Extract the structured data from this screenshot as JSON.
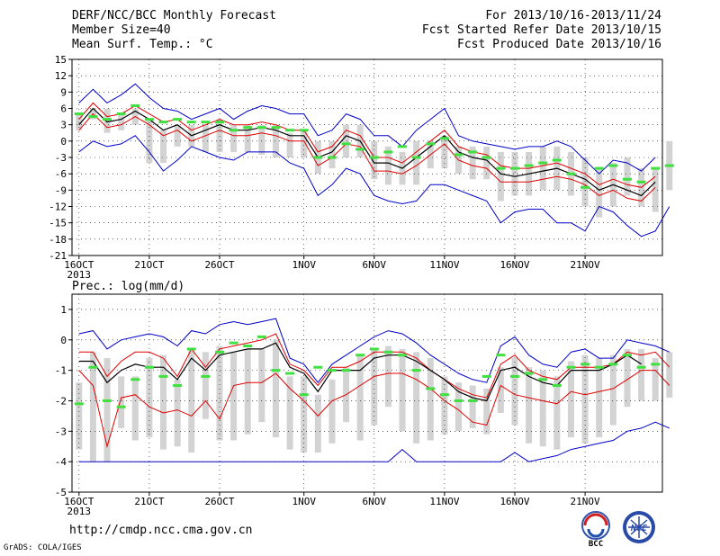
{
  "header": {
    "left": [
      "DERF/NCC/BCC Monthly Forecast",
      "Member Size=40",
      "Mean Surf. Temp.: °C"
    ],
    "right": [
      "For 2013/10/16-2013/11/24",
      "Fcst Started Refer Date 2013/10/15",
      "Fcst Produced Date 2013/10/16"
    ]
  },
  "footer": {
    "url": "http://cmdp.ncc.cma.gov.cn",
    "credit": "GrADS: COLA/IGES",
    "logo_left": "BCC",
    "logo_right": "NCC"
  },
  "colors": {
    "mean": "#000000",
    "spread": "#e00000",
    "extreme": "#0000c8",
    "box": "#d3d3d3",
    "marker": "#40e040"
  },
  "chart_data": [
    {
      "type": "line",
      "title": "Mean Surf. Temp.: °C",
      "x_ticks": [
        "16OCT",
        "21OCT",
        "26OCT",
        "1NOV",
        "6NOV",
        "11NOV",
        "16NOV",
        "21NOV"
      ],
      "x_tick_day_index": [
        0,
        5,
        10,
        16,
        21,
        26,
        31,
        36
      ],
      "x_sublabel": "2013",
      "ylim": [
        -21,
        15
      ],
      "y_ticks": [
        15,
        12,
        9,
        6,
        3,
        0,
        -3,
        -6,
        -9,
        -12,
        -15,
        -18,
        -21
      ],
      "grid": true,
      "series": [
        {
          "role": "max",
          "values": [
            7,
            9.5,
            7,
            8.5,
            10.5,
            8,
            6,
            5.5,
            4,
            5,
            6,
            4,
            5.5,
            6.5,
            6,
            5,
            5,
            1,
            2,
            5,
            4,
            1,
            1,
            -1,
            2,
            4,
            6,
            1,
            0,
            -0.5,
            -1,
            -1.5,
            -1,
            -1,
            0,
            -1,
            -3.5,
            -6,
            -3.5,
            -4,
            -5.5,
            -3
          ]
        },
        {
          "role": "upper",
          "values": [
            4,
            7,
            4.5,
            5,
            6.5,
            5,
            3.5,
            4,
            2,
            3,
            4,
            3,
            3,
            3.5,
            3,
            2,
            2,
            -2,
            -1,
            2,
            1,
            -3,
            -3,
            -4,
            -2,
            0,
            2,
            -1,
            -2,
            -2.5,
            -4.5,
            -5,
            -5,
            -4.5,
            -4,
            -5,
            -6,
            -8,
            -7,
            -8,
            -8.5,
            -6.5
          ]
        },
        {
          "role": "mean",
          "values": [
            3,
            6,
            3.5,
            4,
            5.5,
            4,
            2,
            3,
            1,
            2,
            3,
            2,
            2,
            2.5,
            2,
            1,
            1,
            -3,
            -2,
            1,
            0,
            -4,
            -4,
            -5,
            -3,
            -1,
            1,
            -2,
            -3,
            -3.5,
            -6,
            -6.5,
            -6,
            -5.5,
            -5,
            -6,
            -7,
            -9,
            -8,
            -9,
            -10,
            -7.5
          ]
        },
        {
          "role": "lower",
          "values": [
            2,
            5,
            2.5,
            3,
            4.5,
            3,
            1,
            2,
            0,
            1,
            2,
            1,
            1,
            1.5,
            1,
            0,
            0,
            -4.5,
            -3,
            -0.5,
            -1,
            -5.5,
            -5.5,
            -6,
            -4.5,
            -2.5,
            -0.5,
            -3.5,
            -4.5,
            -5,
            -7.5,
            -7.5,
            -7.5,
            -7,
            -6.5,
            -7,
            -8,
            -10,
            -9,
            -10.5,
            -11,
            -8.5
          ]
        },
        {
          "role": "min",
          "values": [
            -2,
            0,
            -1,
            -0.5,
            1,
            -2,
            -5.5,
            -3.5,
            -1,
            -2,
            -3,
            -3.5,
            -2,
            -2,
            -2,
            -4,
            -5,
            -10,
            -8,
            -5,
            -6,
            -10,
            -11,
            -11.5,
            -11,
            -8,
            -8,
            -9,
            -10,
            -11,
            -15,
            -13,
            -12.5,
            -12.5,
            -15,
            -15,
            -16.5,
            -12,
            -13,
            -15.5,
            -17.5,
            -16.5,
            -12
          ]
        },
        {
          "role": "box_top",
          "values": [
            5,
            6,
            6,
            5,
            6,
            4,
            2,
            3,
            3,
            3,
            4,
            3,
            3,
            3,
            3,
            1.5,
            2,
            0,
            0,
            3,
            3,
            0,
            -1,
            -2,
            0,
            0,
            1,
            -1,
            -1,
            -1,
            -2,
            -2,
            -2,
            -1,
            -1,
            -2,
            -3,
            -5,
            -4,
            -3,
            -5,
            -5,
            0
          ]
        },
        {
          "role": "box_bottom",
          "values": [
            2,
            4,
            1.5,
            2,
            3,
            -4,
            -4,
            -1,
            -1,
            -2,
            -2,
            -2,
            -2,
            -2.5,
            -3,
            -3,
            -3,
            -6,
            -5,
            -3,
            -3,
            -7,
            -8,
            -8,
            -8,
            -5,
            -5,
            -6,
            -7,
            -7,
            -11,
            -10,
            -10,
            -9,
            -9,
            -10,
            -12,
            -14,
            -12,
            -10,
            -12,
            -13,
            -9
          ]
        },
        {
          "role": "observed_marker",
          "values": [
            5,
            4.5,
            4,
            5,
            6.5,
            4,
            3.5,
            4,
            3.5,
            3.5,
            3.5,
            2,
            2.5,
            2.5,
            2.5,
            2,
            2,
            -3,
            -3,
            -0.5,
            -1.5,
            -3,
            -2,
            -1,
            -3,
            -0.5,
            0.5,
            -2.5,
            -2,
            -3,
            -5,
            -5,
            -4.5,
            -4,
            -3.5,
            -6,
            -8.5,
            -5,
            -4.5,
            -7,
            -7.5,
            -5,
            -4.5
          ]
        }
      ]
    },
    {
      "type": "line",
      "title": "Prec.: log(mm/d)",
      "x_ticks": [
        "16OCT",
        "21OCT",
        "26OCT",
        "1NOV",
        "6NOV",
        "11NOV",
        "16NOV",
        "21NOV"
      ],
      "x_tick_day_index": [
        0,
        5,
        10,
        16,
        21,
        26,
        31,
        36
      ],
      "x_sublabel": "2013",
      "ylim": [
        -5,
        1.5
      ],
      "y_ticks": [
        1,
        0,
        -1,
        -2,
        -3,
        -4,
        -5
      ],
      "grid": true,
      "series": [
        {
          "role": "max",
          "values": [
            0.2,
            0.3,
            -0.3,
            0,
            0.1,
            0.2,
            0.1,
            -0.2,
            0.3,
            0.2,
            0.5,
            0.6,
            0.5,
            0.6,
            0.7,
            -0.6,
            -0.8,
            -1.4,
            -0.8,
            -0.5,
            -0.2,
            0.1,
            0.3,
            0.2,
            -0.1,
            -0.5,
            -0.8,
            -1.1,
            -1.3,
            -1.4,
            -0.2,
            0.1,
            -0.5,
            -0.8,
            -0.9,
            -0.4,
            -0.3,
            -0.6,
            -0.6,
            0,
            -0.1,
            -0.2,
            -0.4
          ]
        },
        {
          "role": "upper",
          "values": [
            -0.4,
            -0.4,
            -1.2,
            -0.7,
            -0.4,
            -0.4,
            -0.6,
            -1.2,
            -0.3,
            -0.9,
            -0.3,
            -0.2,
            -0.1,
            0,
            0.2,
            -0.8,
            -1,
            -1.5,
            -0.9,
            -0.9,
            -0.7,
            -0.4,
            -0.4,
            -0.4,
            -0.6,
            -1,
            -1.3,
            -1.6,
            -1.8,
            -1.9,
            -0.8,
            -0.5,
            -1,
            -1.2,
            -1.3,
            -0.9,
            -0.9,
            -0.9,
            -0.8,
            -0.4,
            -0.5,
            -0.4,
            -0.9
          ]
        },
        {
          "role": "mean",
          "values": [
            -0.7,
            -0.7,
            -1.4,
            -1,
            -0.8,
            -0.9,
            -0.9,
            -1.3,
            -0.6,
            -1,
            -0.5,
            -0.4,
            -0.3,
            -0.3,
            -0.1,
            -0.9,
            -1.1,
            -1.7,
            -1,
            -1,
            -1,
            -0.6,
            -0.5,
            -0.5,
            -0.7,
            -1,
            -1.3,
            -1.7,
            -1.9,
            -2,
            -1,
            -0.9,
            -1.2,
            -1.4,
            -1.5,
            -1,
            -1,
            -1,
            -0.8,
            -0.5,
            -0.8
          ]
        },
        {
          "role": "lower",
          "values": [
            -1,
            -1.5,
            -3.5,
            -1.9,
            -1.8,
            -2.2,
            -2.4,
            -2.3,
            -2.5,
            -2,
            -2.6,
            -1.5,
            -1.4,
            -1.4,
            -1.1,
            -1.6,
            -2,
            -2.5,
            -2,
            -1.8,
            -1.5,
            -1.2,
            -1.1,
            -1.1,
            -1.3,
            -1.6,
            -2,
            -2.3,
            -2.7,
            -2.8,
            -1.5,
            -1.8,
            -1.9,
            -2,
            -2.1,
            -1.7,
            -1.8,
            -1.7,
            -1.6,
            -1.3,
            -1,
            -1,
            -1.5
          ]
        },
        {
          "role": "min",
          "values": [
            -4,
            -4,
            -4,
            -4,
            -4,
            -4,
            -4,
            -4,
            -4,
            -4,
            -4,
            -4,
            -4,
            -4,
            -4,
            -4,
            -4,
            -4,
            -4,
            -4,
            -4,
            -4,
            -4,
            -3.6,
            -4,
            -4,
            -4,
            -4,
            -4,
            -4,
            -4,
            -3.7,
            -4,
            -3.9,
            -3.8,
            -3.6,
            -3.5,
            -3.4,
            -3.3,
            -3,
            -2.9,
            -2.7,
            -2.9
          ]
        },
        {
          "role": "box_top",
          "values": [
            -1.4,
            -0.4,
            -0.6,
            -1.2,
            -1.2,
            -0.6,
            -0.5,
            -1.3,
            -0.3,
            -0.4,
            -0.2,
            -0.4,
            -0.3,
            -0.3,
            0,
            -1.2,
            -1.2,
            -1.8,
            -1.3,
            -0.9,
            -0.5,
            -0.3,
            -0.2,
            -0.3,
            -0.4,
            -0.6,
            -1.2,
            -1.4,
            -1.5,
            -1.6,
            -0.9,
            -0.6,
            -0.9,
            -1,
            -1.2,
            -0.7,
            -0.5,
            -0.6,
            -0.5,
            -0.3,
            -0.3,
            -0.6,
            -0.4
          ]
        },
        {
          "role": "box_bottom",
          "values": [
            -3.6,
            -4,
            -4,
            -2.9,
            -3.3,
            -3.2,
            -3.6,
            -3.5,
            -3.7,
            -2.6,
            -3.3,
            -3.3,
            -3.1,
            -2.7,
            -3.2,
            -3.6,
            -3.7,
            -3.7,
            -3.4,
            -2.7,
            -3.3,
            -2.8,
            -2.2,
            -3,
            -3.4,
            -3.3,
            -3.1,
            -3,
            -2.9,
            -3.1,
            -2.4,
            -2.8,
            -3.4,
            -3.5,
            -3.6,
            -3.2,
            -3.4,
            -3.2,
            -2.8,
            -2.2,
            -2,
            -2,
            -1.9
          ]
        },
        {
          "role": "observed_marker",
          "values": [
            -2.1,
            -0.9,
            -2,
            -2.2,
            -1.3,
            -0.9,
            -1.2,
            -1.5,
            -0.3,
            -1.2,
            -0.4,
            -0.1,
            -0.2,
            0.1,
            -1,
            -1.1,
            -1.8,
            -0.9,
            -1,
            -1,
            -0.5,
            -0.3,
            -0.4,
            -0.5,
            -1,
            -1.6,
            -1.8,
            -2,
            -2,
            -1.2,
            -0.5,
            -1.2,
            -1.1,
            -1.3,
            -1.5,
            -0.9,
            -0.8,
            -0.9,
            -0.8,
            -0.5,
            -0.9,
            -0.8
          ]
        }
      ]
    }
  ]
}
